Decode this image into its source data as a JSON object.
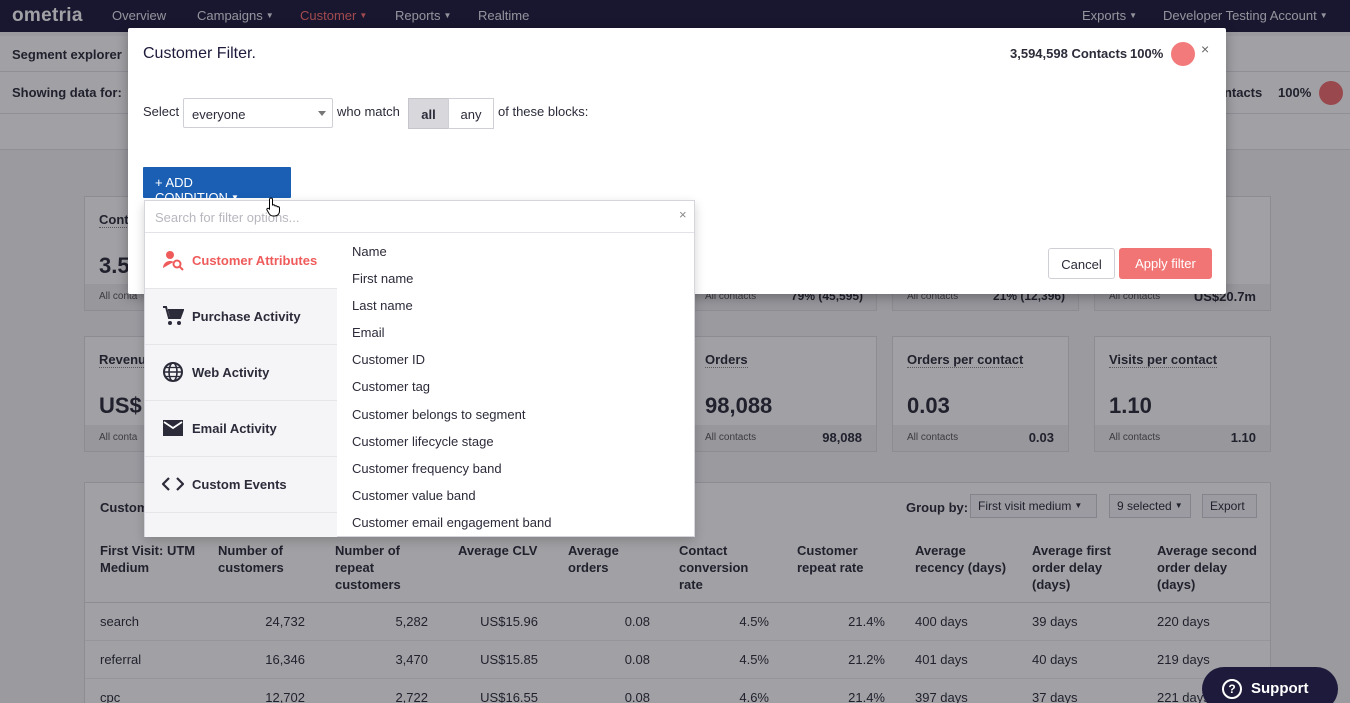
{
  "topnav": {
    "logo": "ometria",
    "items": [
      "Overview",
      "Campaigns",
      "Customer",
      "Reports",
      "Realtime"
    ],
    "exports": "Exports",
    "account": "Developer Testing Account"
  },
  "page": {
    "subbar_title": "Segment explorer",
    "showing_label": "Showing data for:",
    "contacts_text": "ontacts",
    "contacts_pct": "100%"
  },
  "cards": {
    "row1": [
      {
        "title": "Cont",
        "value": "3.5",
        "foot_label": "All conta",
        "foot_mid": "",
        "foot_value": ""
      },
      {
        "title": "",
        "value": "",
        "foot_label": "All contacts",
        "foot_mid": "79% (45,595)",
        "foot_value": ""
      },
      {
        "title": "",
        "value": "",
        "foot_label": "All contacts",
        "foot_mid": "21% (12,396)",
        "foot_value": ""
      },
      {
        "title": "",
        "value": "",
        "foot_label": "All contacts",
        "foot_mid": "",
        "foot_value": "US$20.7m"
      }
    ],
    "row2": [
      {
        "title": "Revenu",
        "value": "US$",
        "foot_label": "All conta",
        "foot_value": ""
      },
      {
        "title": "Orders",
        "value": "98,088",
        "foot_label": "All contacts",
        "foot_value": "98,088"
      },
      {
        "title": "Orders per contact",
        "value": "0.03",
        "foot_label": "All contacts",
        "foot_value": "0.03"
      },
      {
        "title": "Visits per contact",
        "value": "1.10",
        "foot_label": "All contacts",
        "foot_value": "1.10"
      }
    ]
  },
  "table": {
    "title": "Custom",
    "group_by_label": "Group by:",
    "group_by_value": "First visit medium",
    "selected_value": "9 selected",
    "export_label": "Export",
    "headers": [
      "First Visit: UTM Medium",
      "Number of customers",
      "Number of repeat customers",
      "Average CLV",
      "Average orders",
      "Contact conversion rate",
      "Customer repeat rate",
      "Average recency (days)",
      "Average first order delay (days)",
      "Average second order delay (days)"
    ],
    "rows": [
      [
        "search",
        "24,732",
        "5,282",
        "US$15.96",
        "0.08",
        "4.5%",
        "21.4%",
        "400 days",
        "39 days",
        "220 days"
      ],
      [
        "referral",
        "16,346",
        "3,470",
        "US$15.85",
        "0.08",
        "4.5%",
        "21.2%",
        "401 days",
        "40 days",
        "219 days"
      ],
      [
        "cpc",
        "12,702",
        "2,722",
        "US$16.55",
        "0.08",
        "4.6%",
        "21.4%",
        "397 days",
        "37 days",
        "221 days"
      ]
    ]
  },
  "modal": {
    "title": "Customer Filter.",
    "contacts": "3,594,598 Contacts",
    "pct": "100%",
    "close": "×",
    "select_label": "Select",
    "select_value": "everyone",
    "who_match": "who match",
    "match_all": "all",
    "match_any": "any",
    "of_these": "of these blocks:",
    "add_condition": "+ ADD CONDITION",
    "cancel": "Cancel",
    "apply": "Apply filter"
  },
  "dropdown": {
    "search_placeholder": "Search for filter options...",
    "clear": "×",
    "categories": [
      {
        "label": "Customer Attributes",
        "icon": "customer-search-icon"
      },
      {
        "label": "Purchase Activity",
        "icon": "cart-icon"
      },
      {
        "label": "Web Activity",
        "icon": "globe-icon"
      },
      {
        "label": "Email Activity",
        "icon": "envelope-icon"
      },
      {
        "label": "Custom Events",
        "icon": "code-icon"
      }
    ],
    "options": [
      "Name",
      "First name",
      "Last name",
      "Email",
      "Customer ID",
      "Customer tag",
      "Customer belongs to segment",
      "Customer lifecycle stage",
      "Customer frequency band",
      "Customer value band",
      "Customer email engagement band"
    ]
  },
  "support": {
    "label": "Support"
  },
  "colors": {
    "nav_bg": "#1d1a3b",
    "accent_red": "#f27575",
    "primary_blue": "#1a5fb4"
  }
}
